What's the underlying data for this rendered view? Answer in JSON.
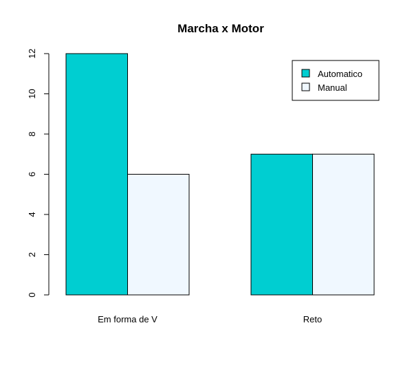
{
  "chart_data": {
    "type": "bar",
    "title": "Marcha x Motor",
    "xlabel": "",
    "ylabel": "",
    "categories": [
      "Em forma de V",
      "Reto"
    ],
    "series": [
      {
        "name": "Automatico",
        "values": [
          12,
          7
        ],
        "color": "#00CED1"
      },
      {
        "name": "Manual",
        "values": [
          6,
          7
        ],
        "color": "#F0F8FF"
      }
    ],
    "ylim": [
      0,
      12
    ],
    "yticks": [
      "0",
      "2",
      "4",
      "6",
      "8",
      "10",
      "12"
    ],
    "legend_position": "top-right",
    "grid": false
  }
}
